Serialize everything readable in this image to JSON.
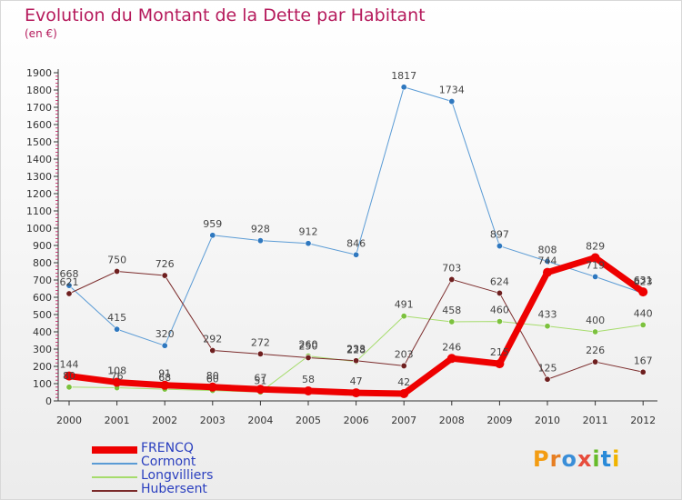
{
  "title": "Evolution du Montant de la Dette par Habitant",
  "subtitle": "(en €)",
  "logo": "Proxiti",
  "colors": {
    "title": "#b5195b",
    "axis": "#333333",
    "grid": "#cccccc",
    "legend_text": "#2a3fbf"
  },
  "chart_data": {
    "type": "line",
    "title": "Evolution du Montant de la Dette par Habitant",
    "subtitle": "(en €)",
    "xlabel": "",
    "ylabel": "",
    "x": [
      "2000",
      "2001",
      "2002",
      "2003",
      "2004",
      "2005",
      "2006",
      "2007",
      "2008",
      "2009",
      "2010",
      "2011",
      "2012"
    ],
    "yticks": [
      0,
      100,
      200,
      300,
      400,
      500,
      600,
      700,
      800,
      900,
      1000,
      1100,
      1200,
      1300,
      1400,
      1500,
      1600,
      1700,
      1800,
      1900
    ],
    "ylim": [
      0,
      1900
    ],
    "grid": false,
    "legend_position": "bottom-left",
    "series": [
      {
        "name": "Cormont",
        "color": "#5a9bd5",
        "dot": "#2f78bf",
        "width": 1,
        "values": [
          668,
          415,
          320,
          959,
          928,
          912,
          846,
          1817,
          1734,
          897,
          808,
          719,
          623
        ]
      },
      {
        "name": "Longvilliers",
        "color": "#a6dc6c",
        "dot": "#7cc13e",
        "width": 1,
        "values": [
          80,
          76,
          68,
          60,
          51,
          260,
          228,
          491,
          458,
          460,
          433,
          400,
          440
        ]
      },
      {
        "name": "Hubersent",
        "color": "#7b2b2b",
        "dot": "#6e1f1f",
        "width": 1,
        "values": [
          621,
          750,
          726,
          292,
          272,
          250,
          233,
          203,
          703,
          624,
          125,
          226,
          167
        ]
      },
      {
        "name": "FRENCQ",
        "color": "#ee0000",
        "dot": "#ee0000",
        "width": 7,
        "values": [
          144,
          108,
          91,
          80,
          67,
          58,
          47,
          42,
          246,
          215,
          744,
          829,
          631
        ]
      }
    ],
    "data_labels": [
      [
        "668",
        "415",
        "320",
        "959",
        "928",
        "912",
        "846",
        "1817",
        "1734",
        "897",
        "808",
        "719",
        "623"
      ],
      [
        "80",
        "76",
        "68",
        "60",
        "51",
        "260",
        "228",
        "491",
        "458",
        "460",
        "433",
        "400",
        "440"
      ],
      [
        "621",
        "750",
        "726",
        "292",
        "272",
        "250",
        "233",
        "203",
        "703",
        "624",
        "125",
        "226",
        "167"
      ],
      [
        "144",
        "108",
        "91",
        "80",
        "67",
        "58",
        "47",
        "42",
        "246",
        "215",
        "744",
        "829",
        "631"
      ]
    ],
    "legend": [
      "FRENCQ",
      "Cormont",
      "Longvilliers",
      "Hubersent"
    ]
  }
}
